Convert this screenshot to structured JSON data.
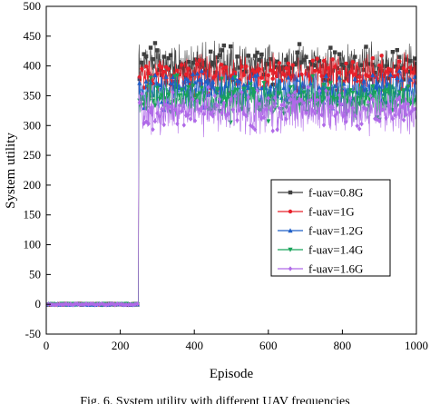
{
  "chart_data": {
    "type": "line",
    "xlabel": "Episode",
    "ylabel": "System utility",
    "caption": "Fig. 6. System utility with different UAV frequencies",
    "xlim": [
      0,
      1000
    ],
    "ylim": [
      -50,
      500
    ],
    "xticks": [
      0,
      200,
      400,
      600,
      800,
      1000
    ],
    "yticks": [
      -50,
      0,
      50,
      100,
      150,
      200,
      250,
      300,
      350,
      400,
      450,
      500
    ],
    "legend_position": "lower-right inside plot",
    "x_step": 1,
    "transition_episode": 250,
    "series": [
      {
        "name": "f-uav=0.8G",
        "color": "#404040",
        "marker": "square",
        "episodes_0_249": 0,
        "episodes_250_1000_mean": 400,
        "episodes_250_1000_spread": [
          365,
          450
        ]
      },
      {
        "name": "f-uav=1G",
        "color": "#e8202a",
        "marker": "circle",
        "episodes_0_249": 0,
        "episodes_250_1000_mean": 385,
        "episodes_250_1000_spread": [
          345,
          430
        ]
      },
      {
        "name": "f-uav=1.2G",
        "color": "#1f5fc8",
        "marker": "triangle-up",
        "episodes_0_249": 0,
        "episodes_250_1000_mean": 360,
        "episodes_250_1000_spread": [
          320,
          405
        ]
      },
      {
        "name": "f-uav=1.4G",
        "color": "#19a35a",
        "marker": "triangle-down",
        "episodes_0_249": 0,
        "episodes_250_1000_mean": 345,
        "episodes_250_1000_spread": [
          300,
          390
        ]
      },
      {
        "name": "f-uav=1.6G",
        "color": "#b06ae8",
        "marker": "diamond",
        "episodes_0_249": 0,
        "episodes_250_1000_mean": 325,
        "episodes_250_1000_spread": [
          280,
          375
        ]
      }
    ]
  }
}
